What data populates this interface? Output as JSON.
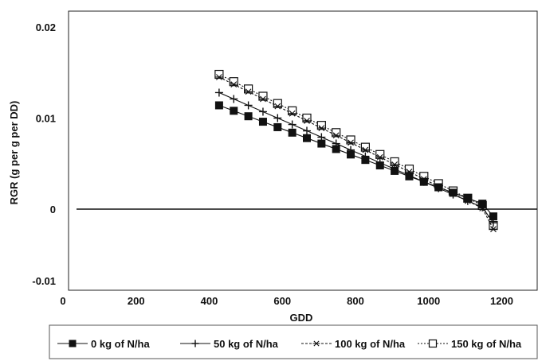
{
  "chart_data": {
    "type": "line",
    "title": "",
    "xlabel": "GDD",
    "ylabel": "RGR (g per g per DD)",
    "xlim": [
      0,
      1300
    ],
    "ylim": [
      -0.01,
      0.02
    ],
    "x_ticks": [
      0,
      200,
      400,
      600,
      800,
      1000,
      1200
    ],
    "x_tick_labels": [
      "0",
      "200",
      "400",
      "600",
      "800",
      "1000",
      "1200"
    ],
    "y_ticks": [
      0.02,
      0.01,
      0,
      -0.01
    ],
    "y_tick_labels": [
      "0.02",
      "0.01",
      "0",
      "-0.01"
    ],
    "grid": false,
    "legend_position": "bottom",
    "x": [
      430,
      470,
      510,
      550,
      590,
      630,
      670,
      710,
      750,
      790,
      830,
      870,
      910,
      950,
      990,
      1030,
      1070,
      1110,
      1150,
      1180
    ],
    "series": [
      {
        "name": "0 kg of N/ha",
        "marker": "filled-square",
        "color": "#111111",
        "values": [
          0.0114,
          0.0108,
          0.0102,
          0.0096,
          0.009,
          0.0084,
          0.0078,
          0.0072,
          0.0066,
          0.006,
          0.0054,
          0.0048,
          0.0042,
          0.0036,
          0.003,
          0.0024,
          0.0018,
          0.0012,
          0.0006,
          -0.0008
        ]
      },
      {
        "name": "50 kg of N/ha",
        "marker": "plus",
        "color": "#111111",
        "values": [
          0.0128,
          0.0121,
          0.0114,
          0.0107,
          0.01,
          0.0093,
          0.0086,
          0.0079,
          0.0072,
          0.0065,
          0.0058,
          0.0051,
          0.0044,
          0.0037,
          0.003,
          0.0023,
          0.0016,
          0.0009,
          0.0002,
          -0.0015
        ]
      },
      {
        "name": "100 kg of N/ha",
        "marker": "asterisk",
        "color": "#111111",
        "values": [
          0.0145,
          0.0137,
          0.0129,
          0.0121,
          0.0113,
          0.0105,
          0.0097,
          0.0089,
          0.0081,
          0.0073,
          0.0065,
          0.0057,
          0.0049,
          0.0041,
          0.0033,
          0.0025,
          0.0017,
          0.0009,
          0.0001,
          -0.0022
        ]
      },
      {
        "name": "150 kg of N/ha",
        "marker": "open-square",
        "color": "#111111",
        "values": [
          0.0148,
          0.014,
          0.0132,
          0.0124,
          0.0116,
          0.0108,
          0.01,
          0.0092,
          0.0084,
          0.0076,
          0.0068,
          0.006,
          0.0052,
          0.0044,
          0.0036,
          0.0028,
          0.002,
          0.0012,
          0.0004,
          -0.0018
        ]
      }
    ]
  }
}
